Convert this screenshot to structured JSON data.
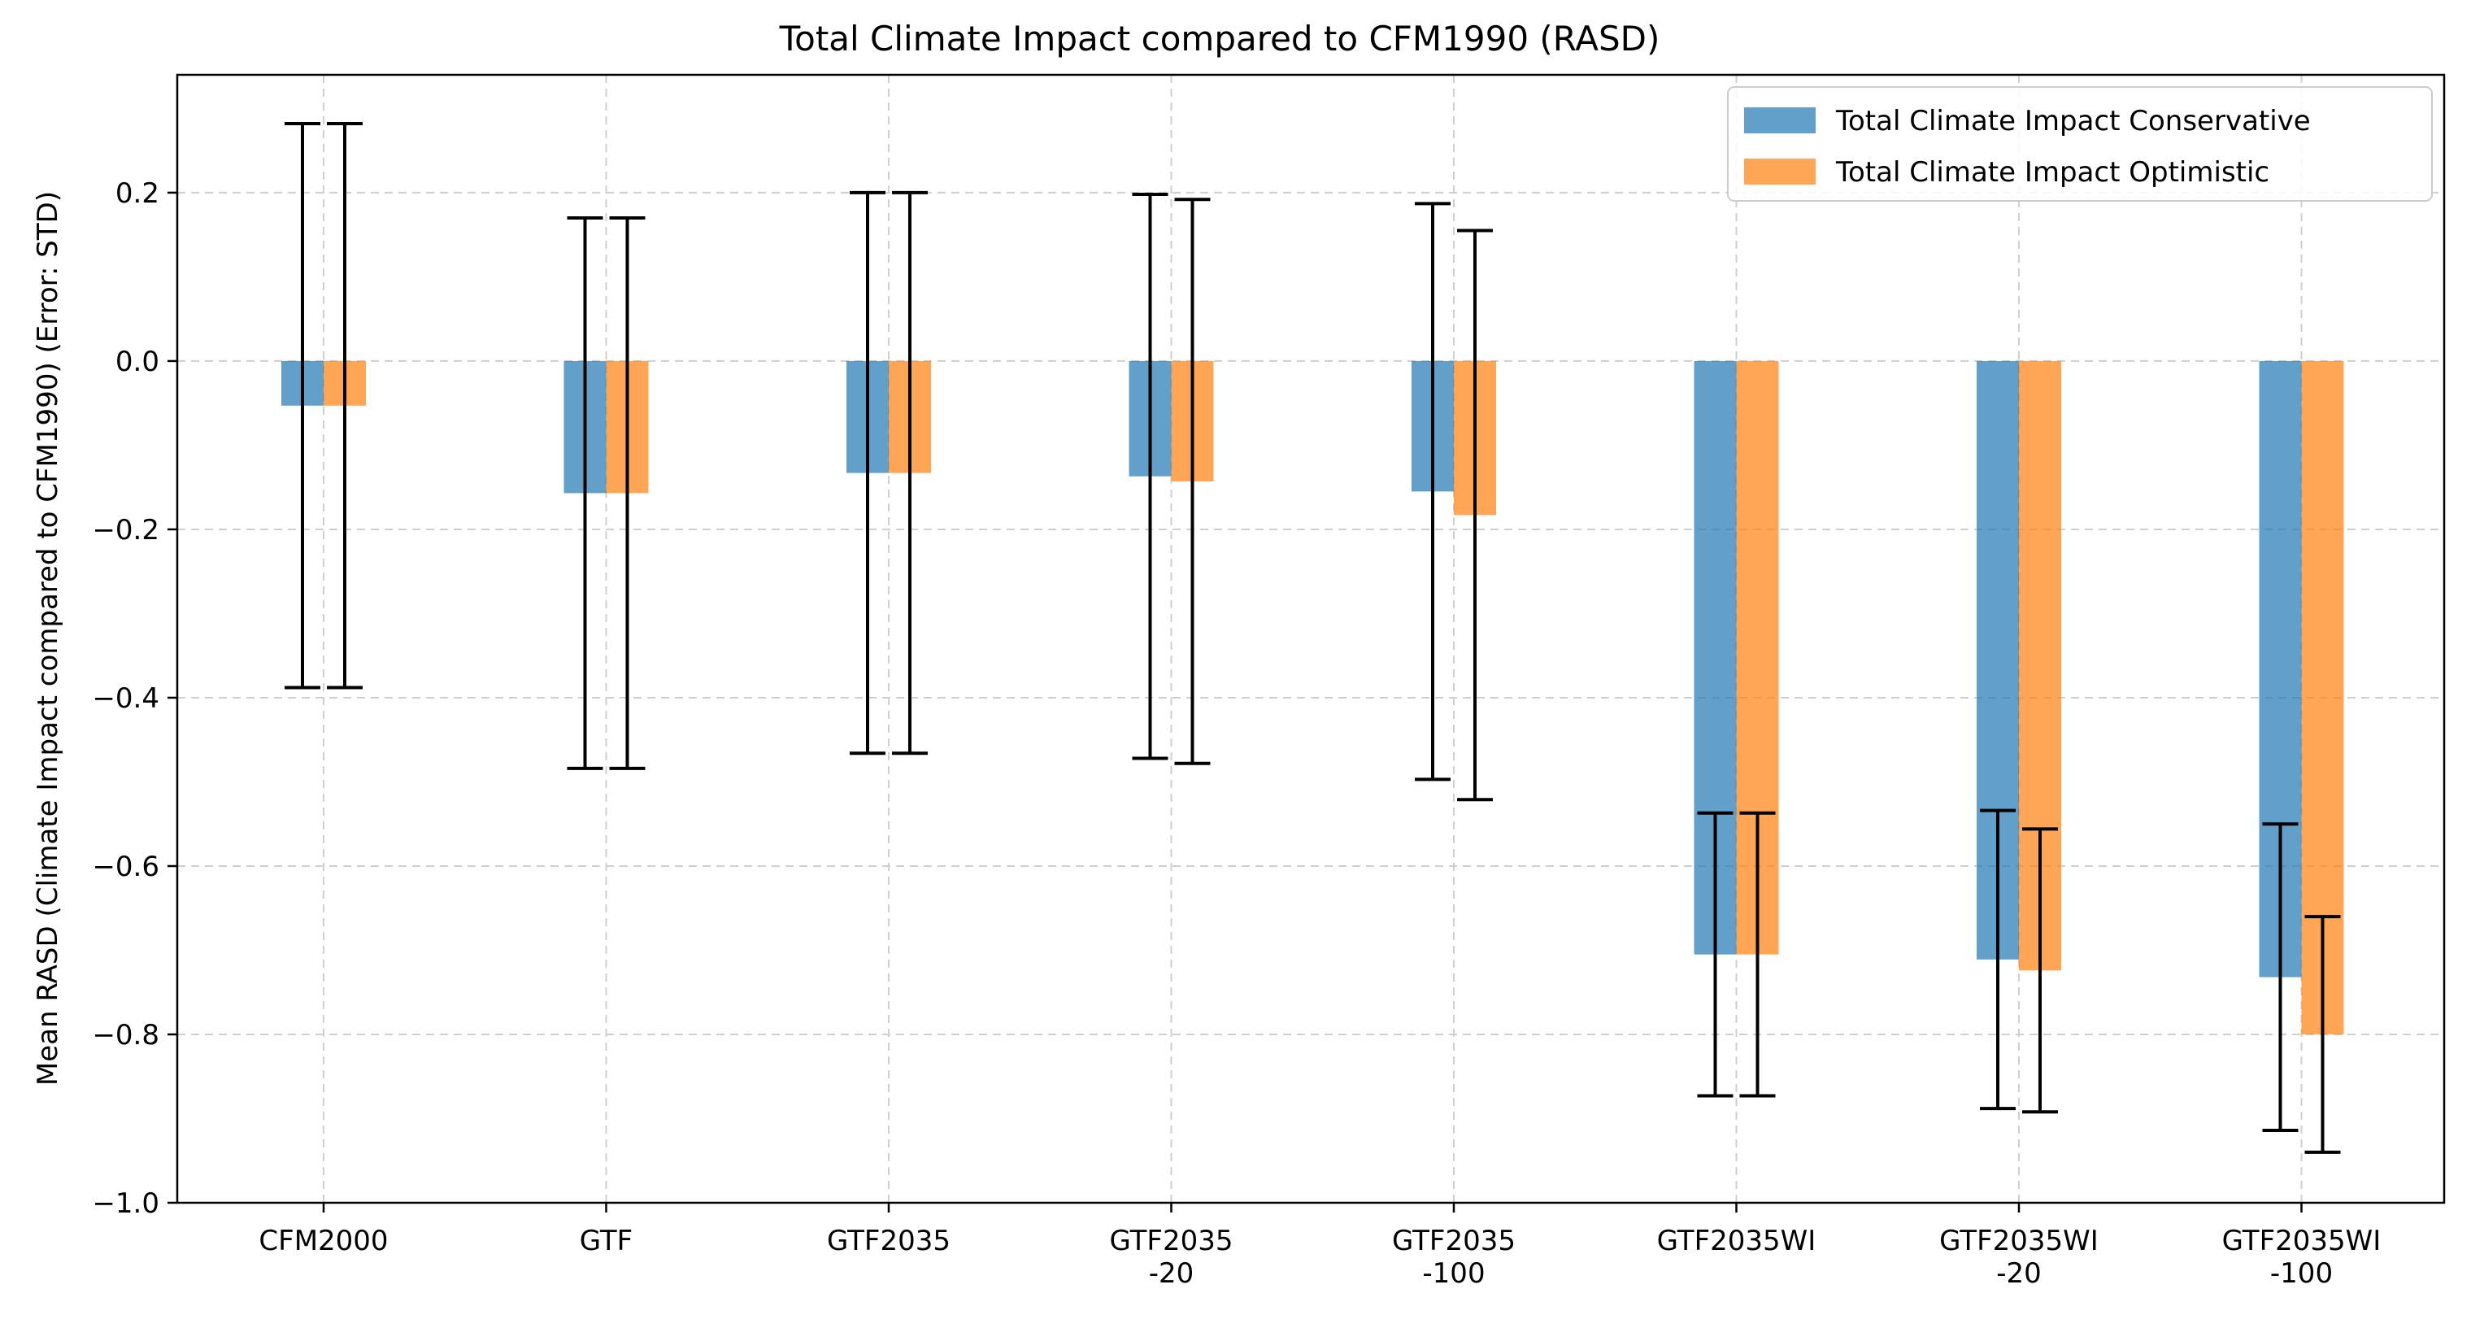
{
  "chart_data": {
    "type": "bar",
    "title": "Total Climate Impact compared to CFM1990 (RASD)",
    "xlabel": "",
    "ylabel": "Mean RASD (Climate Impact compared to CFM1990) (Error: STD)",
    "ylim": [
      -1.0,
      0.34
    ],
    "yticks": [
      -1.0,
      -0.8,
      -0.6,
      -0.4,
      -0.2,
      0.0,
      0.2
    ],
    "ytick_labels": [
      "−1.0",
      "−0.8",
      "−0.6",
      "−0.4",
      "−0.2",
      "0.0",
      "0.2"
    ],
    "grid": true,
    "legend_position": "top-right",
    "categories": [
      [
        "CFM2000"
      ],
      [
        "GTF"
      ],
      [
        "GTF2035"
      ],
      [
        "GTF2035",
        "-20"
      ],
      [
        "GTF2035",
        "-100"
      ],
      [
        "GTF2035WI"
      ],
      [
        "GTF2035WI",
        "-20"
      ],
      [
        "GTF2035WI",
        "-100"
      ]
    ],
    "series": [
      {
        "name": "Total Climate Impact Conservative",
        "color": "#1f77b4",
        "values": [
          -0.053,
          -0.157,
          -0.133,
          -0.137,
          -0.155,
          -0.705,
          -0.711,
          -0.732
        ],
        "error_std": [
          0.335,
          0.327,
          0.333,
          0.335,
          0.342,
          0.168,
          0.177,
          0.182
        ]
      },
      {
        "name": "Total Climate Impact Optimistic",
        "color": "#ff7f0e",
        "values": [
          -0.053,
          -0.157,
          -0.133,
          -0.143,
          -0.183,
          -0.705,
          -0.724,
          -0.8
        ],
        "error_std": [
          0.335,
          0.327,
          0.333,
          0.335,
          0.338,
          0.168,
          0.168,
          0.14
        ]
      }
    ]
  }
}
